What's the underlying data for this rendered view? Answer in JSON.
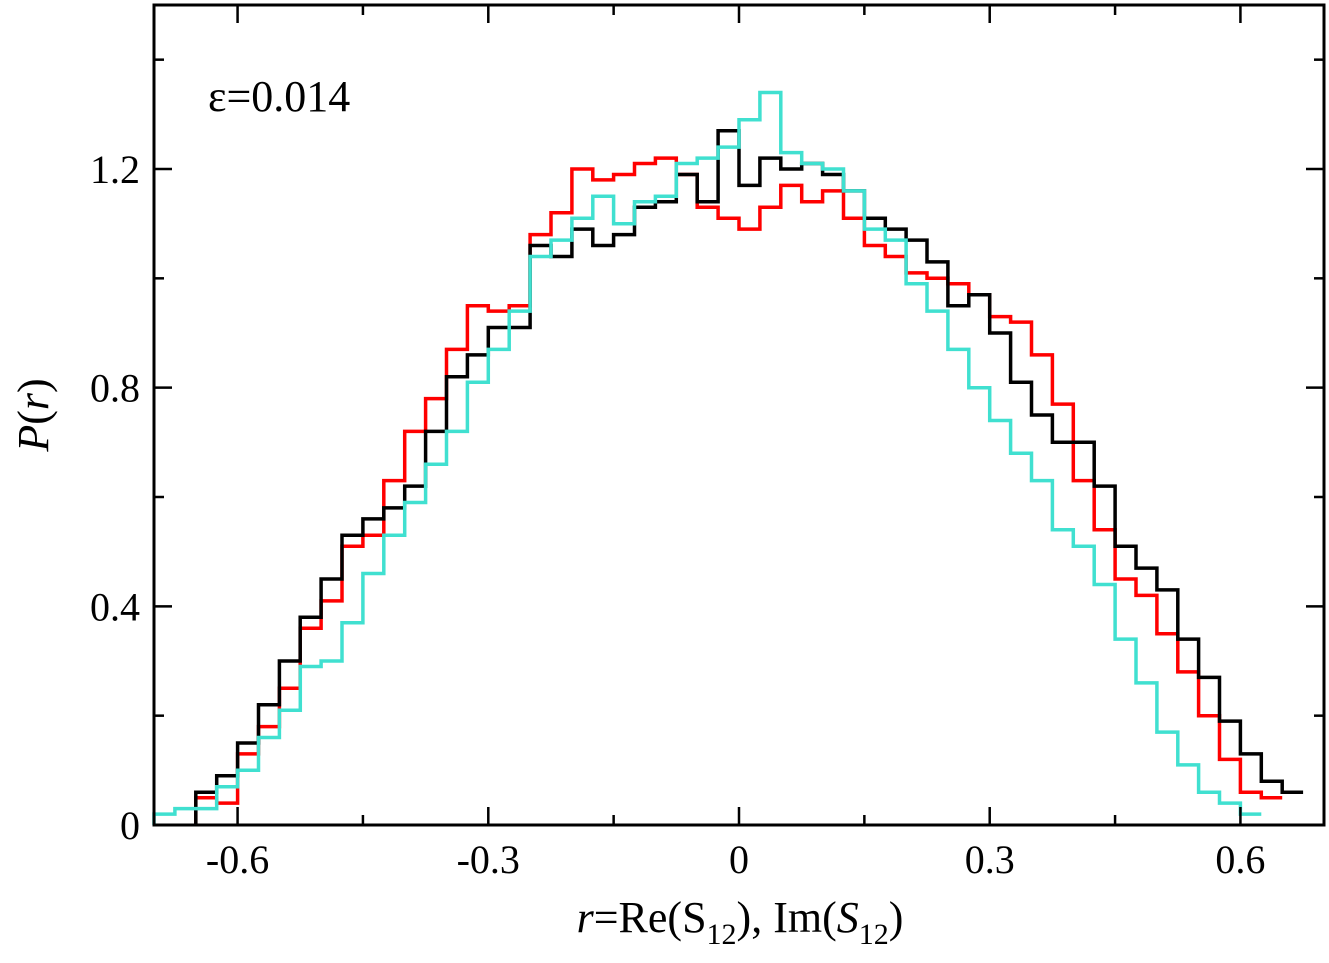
{
  "chart_data": {
    "type": "line",
    "style": "histogram-step",
    "title": "",
    "annotation": "ε=0.014",
    "xlabel": {
      "italic_var": "r",
      "rest1": "=Re(S",
      "sub1": "12",
      "rest2": "), Im(",
      "italic_S": "S",
      "sub2": "12",
      "rest3": ")"
    },
    "ylabel": {
      "italic_P": "P",
      "open": "(",
      "italic_r": "r",
      "close": ")"
    },
    "xlim": [
      -0.7,
      0.7
    ],
    "ylim": [
      0,
      1.5
    ],
    "xticks": [
      -0.6,
      -0.3,
      0,
      0.3,
      0.6
    ],
    "xtick_labels": [
      "-0.6",
      "-0.3",
      "0",
      "0.3",
      "0.6"
    ],
    "yticks": [
      0,
      0.4,
      0.8,
      1.2
    ],
    "ytick_labels": [
      "0",
      "0.4",
      "0.8",
      "1.2"
    ],
    "bin_width": 0.025,
    "grid": false,
    "series": [
      {
        "name": "black",
        "color": "#000000",
        "x_start": -0.65,
        "values": [
          0.06,
          0.09,
          0.15,
          0.22,
          0.3,
          0.38,
          0.45,
          0.53,
          0.56,
          0.58,
          0.62,
          0.72,
          0.82,
          0.86,
          0.91,
          0.91,
          1.06,
          1.04,
          1.09,
          1.06,
          1.08,
          1.13,
          1.14,
          1.19,
          1.14,
          1.27,
          1.17,
          1.22,
          1.2,
          1.21,
          1.19,
          1.16,
          1.11,
          1.09,
          1.07,
          1.03,
          0.95,
          0.97,
          0.9,
          0.81,
          0.75,
          0.7,
          0.7,
          0.62,
          0.51,
          0.47,
          0.43,
          0.34,
          0.27,
          0.19,
          0.13,
          0.08,
          0.06
        ]
      },
      {
        "name": "red",
        "color": "#ff0000",
        "x_start": -0.65,
        "values": [
          0.05,
          0.04,
          0.13,
          0.18,
          0.25,
          0.36,
          0.41,
          0.51,
          0.53,
          0.63,
          0.72,
          0.78,
          0.87,
          0.95,
          0.94,
          0.95,
          1.08,
          1.12,
          1.2,
          1.18,
          1.19,
          1.21,
          1.22,
          1.19,
          1.13,
          1.11,
          1.09,
          1.13,
          1.17,
          1.14,
          1.16,
          1.11,
          1.06,
          1.04,
          1.01,
          1.0,
          0.99,
          0.97,
          0.93,
          0.92,
          0.86,
          0.77,
          0.63,
          0.54,
          0.45,
          0.42,
          0.35,
          0.28,
          0.2,
          0.12,
          0.06,
          0.05
        ]
      },
      {
        "name": "cyan",
        "color": "#40e0d0",
        "x_start": -0.7,
        "values": [
          0.02,
          0.03,
          0.03,
          0.07,
          0.1,
          0.16,
          0.21,
          0.29,
          0.3,
          0.37,
          0.46,
          0.53,
          0.59,
          0.66,
          0.72,
          0.81,
          0.87,
          0.94,
          1.04,
          1.07,
          1.11,
          1.15,
          1.1,
          1.14,
          1.15,
          1.21,
          1.22,
          1.24,
          1.29,
          1.34,
          1.23,
          1.21,
          1.2,
          1.16,
          1.09,
          1.07,
          0.99,
          0.94,
          0.87,
          0.8,
          0.74,
          0.68,
          0.63,
          0.54,
          0.51,
          0.44,
          0.34,
          0.26,
          0.17,
          0.11,
          0.06,
          0.04,
          0.02
        ]
      }
    ]
  }
}
